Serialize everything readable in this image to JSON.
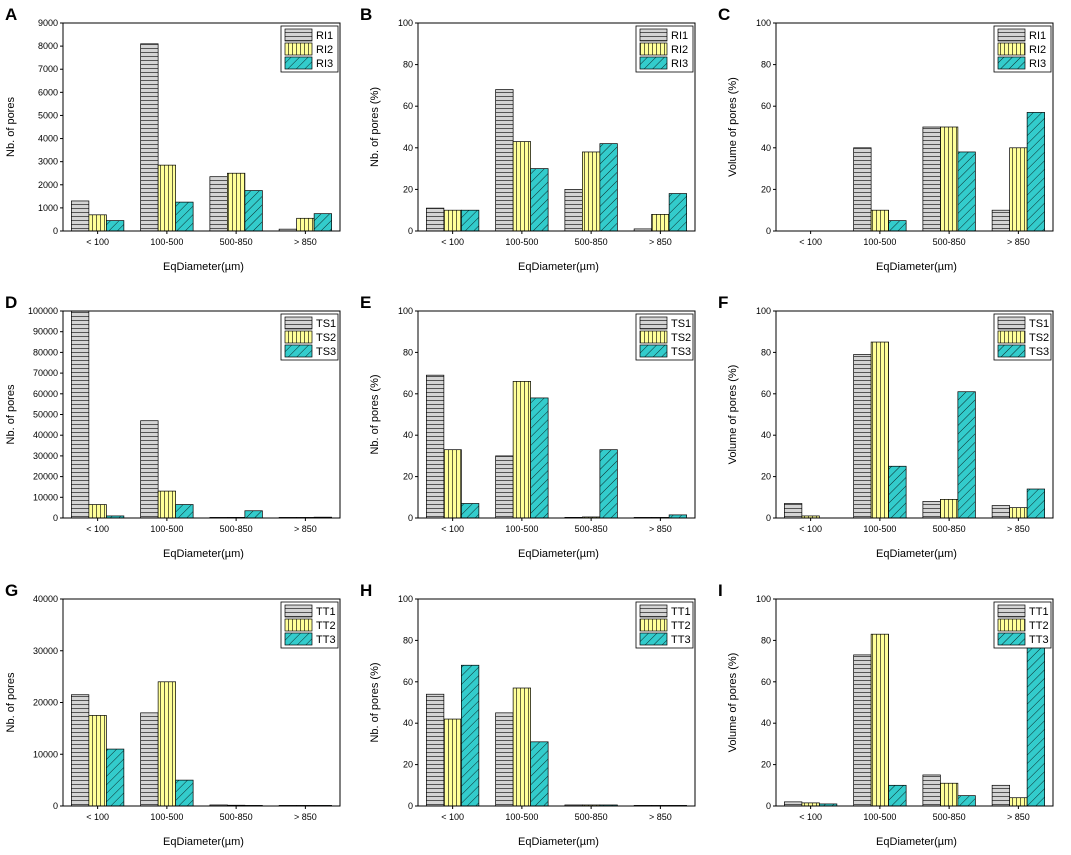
{
  "figure": {
    "xlabel": "EqDiameter(µm)"
  },
  "colors": {
    "series1": "#d4d4d4",
    "series2": "#ffff99",
    "series3": "#33cccc",
    "stroke": "#000000"
  },
  "chart_data": [
    {
      "panel": "A",
      "type": "bar",
      "categories": [
        "< 100",
        "100-500",
        "500-850",
        "> 850"
      ],
      "ylabel": "Nb. of pores",
      "xlabel": "EqDiameter(µm)",
      "ylim": [
        0,
        9000
      ],
      "yticks": [
        0,
        1000,
        2000,
        3000,
        4000,
        5000,
        6000,
        7000,
        8000,
        9000
      ],
      "series": [
        {
          "name": "RI1",
          "values": [
            1300,
            8100,
            2350,
            80
          ]
        },
        {
          "name": "RI2",
          "values": [
            700,
            2850,
            2500,
            550
          ]
        },
        {
          "name": "RI3",
          "values": [
            450,
            1250,
            1750,
            750
          ]
        }
      ]
    },
    {
      "panel": "B",
      "type": "bar",
      "categories": [
        "< 100",
        "100-500",
        "500-850",
        "> 850"
      ],
      "ylabel": "Nb. of pores (%)",
      "xlabel": "EqDiameter(µm)",
      "ylim": [
        0,
        100
      ],
      "yticks": [
        0,
        20,
        40,
        60,
        80,
        100
      ],
      "series": [
        {
          "name": "RI1",
          "values": [
            11,
            68,
            20,
            1
          ]
        },
        {
          "name": "RI2",
          "values": [
            10,
            43,
            38,
            8
          ]
        },
        {
          "name": "RI3",
          "values": [
            10,
            30,
            42,
            18
          ]
        }
      ]
    },
    {
      "panel": "C",
      "type": "bar",
      "categories": [
        "< 100",
        "100-500",
        "500-850",
        "> 850"
      ],
      "ylabel": "Volume of pores (%)",
      "xlabel": "EqDiameter(µm)",
      "ylim": [
        0,
        100
      ],
      "yticks": [
        0,
        20,
        40,
        60,
        80,
        100
      ],
      "series": [
        {
          "name": "RI1",
          "values": [
            0,
            40,
            50,
            10
          ]
        },
        {
          "name": "RI2",
          "values": [
            0,
            10,
            50,
            40
          ]
        },
        {
          "name": "RI3",
          "values": [
            0,
            5,
            38,
            57
          ]
        }
      ]
    },
    {
      "panel": "D",
      "type": "bar",
      "categories": [
        "< 100",
        "100-500",
        "500-850",
        "> 850"
      ],
      "ylabel": "Nb. of pores",
      "xlabel": "EqDiameter(µm)",
      "ylim": [
        0,
        100000
      ],
      "yticks": [
        0,
        10000,
        20000,
        30000,
        40000,
        50000,
        60000,
        70000,
        80000,
        90000,
        100000
      ],
      "series": [
        {
          "name": "TS1",
          "values": [
            100000,
            47000,
            200,
            100
          ]
        },
        {
          "name": "TS2",
          "values": [
            6500,
            13000,
            300,
            100
          ]
        },
        {
          "name": "TS3",
          "values": [
            1000,
            6500,
            3500,
            400
          ]
        }
      ]
    },
    {
      "panel": "E",
      "type": "bar",
      "categories": [
        "< 100",
        "100-500",
        "500-850",
        "> 850"
      ],
      "ylabel": "Nb. of pores (%)",
      "xlabel": "EqDiameter(µm)",
      "ylim": [
        0,
        100
      ],
      "yticks": [
        0,
        20,
        40,
        60,
        80,
        100
      ],
      "series": [
        {
          "name": "TS1",
          "values": [
            69,
            30,
            0.3,
            0.1
          ]
        },
        {
          "name": "TS2",
          "values": [
            33,
            66,
            0.5,
            0.2
          ]
        },
        {
          "name": "TS3",
          "values": [
            7,
            58,
            33,
            1.5
          ]
        }
      ]
    },
    {
      "panel": "F",
      "type": "bar",
      "categories": [
        "< 100",
        "100-500",
        "500-850",
        "> 850"
      ],
      "ylabel": "Volume of pores (%)",
      "xlabel": "EqDiameter(µm)",
      "ylim": [
        0,
        100
      ],
      "yticks": [
        0,
        20,
        40,
        60,
        80,
        100
      ],
      "series": [
        {
          "name": "TS1",
          "values": [
            7,
            79,
            8,
            6
          ]
        },
        {
          "name": "TS2",
          "values": [
            1,
            85,
            9,
            5
          ]
        },
        {
          "name": "TS3",
          "values": [
            0,
            25,
            61,
            14
          ]
        }
      ]
    },
    {
      "panel": "G",
      "type": "bar",
      "categories": [
        "< 100",
        "100-500",
        "500-850",
        "> 850"
      ],
      "ylabel": "Nb. of pores",
      "xlabel": "EqDiameter(µm)",
      "ylim": [
        0,
        40000
      ],
      "yticks": [
        0,
        10000,
        20000,
        30000,
        40000
      ],
      "series": [
        {
          "name": "TT1",
          "values": [
            21500,
            18000,
            200,
            30
          ]
        },
        {
          "name": "TT2",
          "values": [
            17500,
            24000,
            150,
            20
          ]
        },
        {
          "name": "TT3",
          "values": [
            11000,
            5000,
            100,
            20
          ]
        }
      ]
    },
    {
      "panel": "H",
      "type": "bar",
      "categories": [
        "< 100",
        "100-500",
        "500-850",
        "> 850"
      ],
      "ylabel": "Nb. of pores (%)",
      "xlabel": "EqDiameter(µm)",
      "ylim": [
        0,
        100
      ],
      "yticks": [
        0,
        20,
        40,
        60,
        80,
        100
      ],
      "series": [
        {
          "name": "TT1",
          "values": [
            54,
            45,
            0.5,
            0.1
          ]
        },
        {
          "name": "TT2",
          "values": [
            42,
            57,
            0.5,
            0.1
          ]
        },
        {
          "name": "TT3",
          "values": [
            68,
            31,
            0.5,
            0.1
          ]
        }
      ]
    },
    {
      "panel": "I",
      "type": "bar",
      "categories": [
        "< 100",
        "100-500",
        "500-850",
        "> 850"
      ],
      "ylabel": "Volume of pores (%)",
      "xlabel": "EqDiameter(µm)",
      "ylim": [
        0,
        100
      ],
      "yticks": [
        0,
        20,
        40,
        60,
        80,
        100
      ],
      "series": [
        {
          "name": "TT1",
          "values": [
            2,
            73,
            15,
            10
          ]
        },
        {
          "name": "TT2",
          "values": [
            1.5,
            83,
            11,
            4
          ]
        },
        {
          "name": "TT3",
          "values": [
            1,
            10,
            5,
            85
          ]
        }
      ]
    }
  ]
}
